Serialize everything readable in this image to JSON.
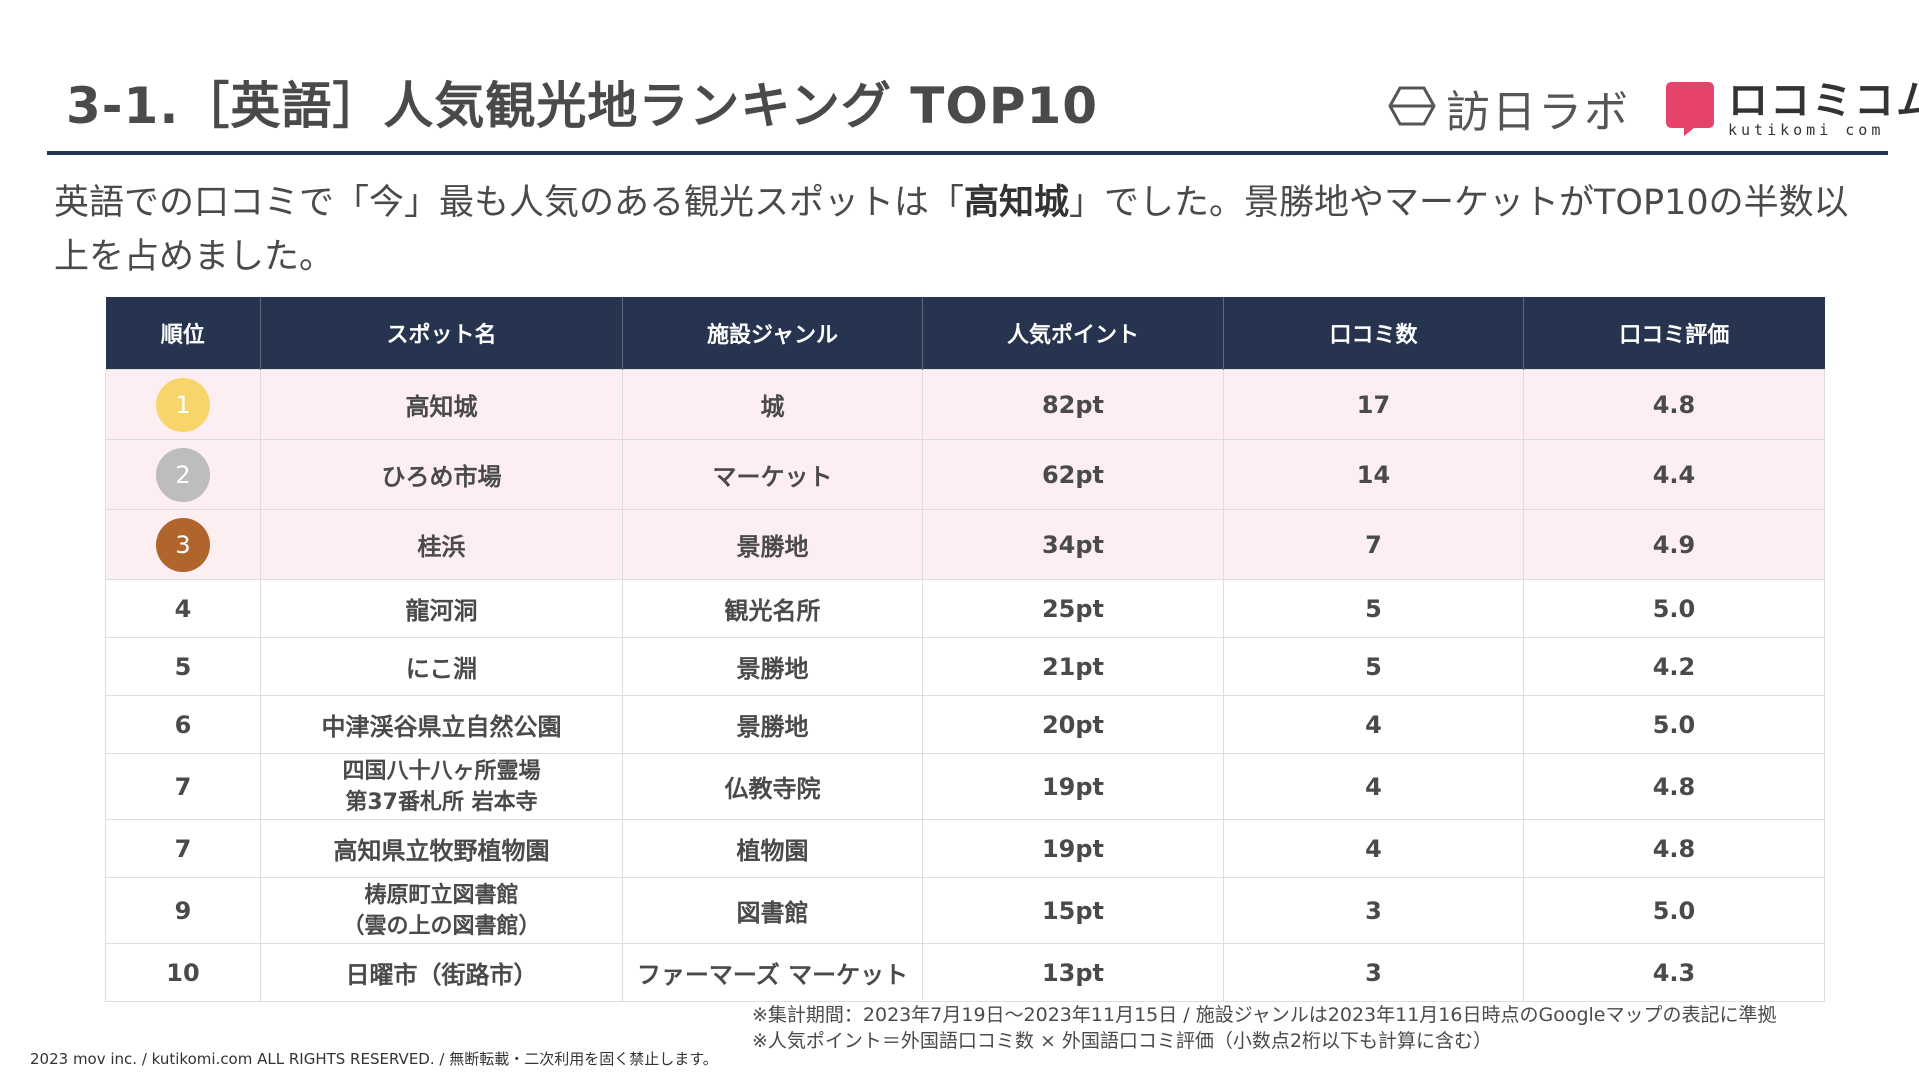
{
  "title": "3-1.［英語］人気観光地ランキング TOP10",
  "logos": {
    "houjin": {
      "text": "訪日ラボ",
      "icon": "hexagon-logo-icon"
    },
    "kutikomi": {
      "main": "ロコミコム",
      "sub": "kutikomi com",
      "icon": "speech-bubble-logo-icon",
      "color": "#e5436a"
    }
  },
  "lead": {
    "part1": "英語での口コミで「今」最も人気のある観光スポットは「",
    "highlight": "高知城",
    "part2": "」でした。景勝地やマーケットがTOP10の半数以上を占めました。"
  },
  "table": {
    "headers": [
      "順位",
      "スポット名",
      "施設ジャンル",
      "人気ポイント",
      "口コミ数",
      "口コミ評価"
    ],
    "rows": [
      {
        "rank": "1",
        "spot": [
          "高知城"
        ],
        "genre": "城",
        "points": "82pt",
        "reviews": "17",
        "rating": "4.8",
        "medal": "gold"
      },
      {
        "rank": "2",
        "spot": [
          "ひろめ市場"
        ],
        "genre": "マーケット",
        "points": "62pt",
        "reviews": "14",
        "rating": "4.4",
        "medal": "silver"
      },
      {
        "rank": "3",
        "spot": [
          "桂浜"
        ],
        "genre": "景勝地",
        "points": "34pt",
        "reviews": "7",
        "rating": "4.9",
        "medal": "bronze"
      },
      {
        "rank": "4",
        "spot": [
          "龍河洞"
        ],
        "genre": "観光名所",
        "points": "25pt",
        "reviews": "5",
        "rating": "5.0"
      },
      {
        "rank": "5",
        "spot": [
          "にこ淵"
        ],
        "genre": "景勝地",
        "points": "21pt",
        "reviews": "5",
        "rating": "4.2"
      },
      {
        "rank": "6",
        "spot": [
          "中津渓谷県立自然公園"
        ],
        "genre": "景勝地",
        "points": "20pt",
        "reviews": "4",
        "rating": "5.0"
      },
      {
        "rank": "7",
        "spot": [
          "四国八十八ヶ所霊場",
          "第37番札所 岩本寺"
        ],
        "genre": "仏教寺院",
        "points": "19pt",
        "reviews": "4",
        "rating": "4.8"
      },
      {
        "rank": "7",
        "spot": [
          "高知県立牧野植物園"
        ],
        "genre": "植物園",
        "points": "19pt",
        "reviews": "4",
        "rating": "4.8"
      },
      {
        "rank": "9",
        "spot": [
          "梼原町立図書館",
          "（雲の上の図書館）"
        ],
        "genre": "図書館",
        "points": "15pt",
        "reviews": "3",
        "rating": "5.0"
      },
      {
        "rank": "10",
        "spot": [
          "日曜市（街路市）"
        ],
        "genre": "ファーマーズ マーケット",
        "points": "13pt",
        "reviews": "3",
        "rating": "4.3"
      }
    ]
  },
  "notes": [
    "※集計期間：2023年7月19日～2023年11月15日 / 施設ジャンルは2023年11月16日時点のGoogleマップの表記に準拠",
    "※人気ポイント＝外国語口コミ数 × 外国語口コミ評価（小数点2桁以下も計算に含む）"
  ],
  "copyright": "2023 mov inc. / kutikomi.com ALL RIGHTS RESERVED. / 無断転載・二次利用を固く禁止します。",
  "colors": {
    "header_bg": "#27344f",
    "top3_row_bg": "#fdeef1",
    "gold": "#f8d56b",
    "silver": "#bdbdbd",
    "bronze": "#b0652c"
  }
}
